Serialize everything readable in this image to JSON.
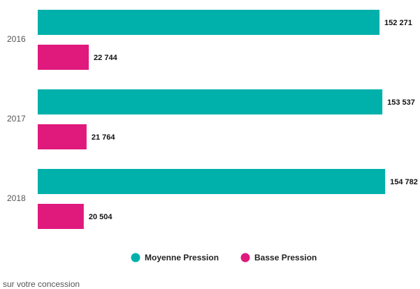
{
  "chart_data": {
    "type": "bar",
    "orientation": "horizontal",
    "categories": [
      "2016",
      "2017",
      "2018"
    ],
    "series": [
      {
        "name": "Moyenne Pression",
        "color": "#00b0aa",
        "values": [
          152271,
          153537,
          154782
        ],
        "value_labels": [
          "152 271",
          "153 537",
          "154 782"
        ]
      },
      {
        "name": "Basse Pression",
        "color": "#e0197d",
        "values": [
          22744,
          21764,
          20504
        ],
        "value_labels": [
          "22 744",
          "21 764",
          "20 504"
        ]
      }
    ],
    "xlim": [
      0,
      170000
    ],
    "legend": "bottom",
    "footnote": "sur votre concession"
  }
}
